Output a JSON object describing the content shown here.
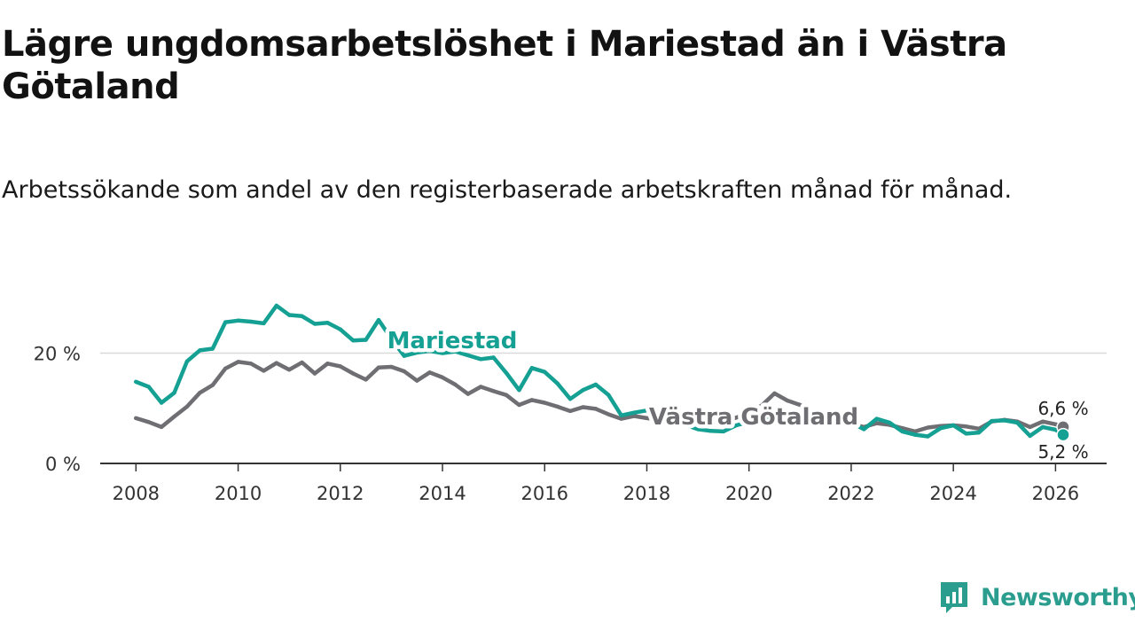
{
  "title": "Lägre ungdomsarbetslöshet i Mariestad än i Västra Götaland",
  "subtitle": "Arbetssökande som andel av den registerbaserade arbetskraften månad för månad.",
  "brand": {
    "name": "Newsworthy",
    "icon": "newsworthy-logo-icon",
    "color": "#2a9d8f"
  },
  "chart_data": {
    "type": "line",
    "title": "Lägre ungdomsarbetslöshet i Mariestad än i Västra Götaland",
    "xlabel": "",
    "ylabel": "",
    "xlim": [
      2007.3,
      2027.0
    ],
    "ylim": [
      0,
      31
    ],
    "x_ticks": [
      2008,
      2010,
      2012,
      2014,
      2016,
      2018,
      2020,
      2022,
      2024,
      2026
    ],
    "x_tick_labels": [
      "2008",
      "2010",
      "2012",
      "2014",
      "2016",
      "2018",
      "2020",
      "2022",
      "2024",
      "2026"
    ],
    "y_ticks": [
      0,
      20
    ],
    "y_tick_labels": [
      "0 %",
      "20 %"
    ],
    "grid": "horizontal",
    "series": [
      {
        "name": "Västra Götaland",
        "label": "Västra Götaland",
        "color": "#6e6e73",
        "end_label": "6,6 %",
        "x": [
          2008.0,
          2008.25,
          2008.5,
          2008.75,
          2009.0,
          2009.25,
          2009.5,
          2009.75,
          2010.0,
          2010.25,
          2010.5,
          2010.75,
          2011.0,
          2011.25,
          2011.5,
          2011.75,
          2012.0,
          2012.25,
          2012.5,
          2012.75,
          2013.0,
          2013.25,
          2013.5,
          2013.75,
          2014.0,
          2014.25,
          2014.5,
          2014.75,
          2015.0,
          2015.25,
          2015.5,
          2015.75,
          2016.0,
          2016.25,
          2016.5,
          2016.75,
          2017.0,
          2017.25,
          2017.5,
          2017.75,
          2018.0,
          2018.25,
          2018.5,
          2018.75,
          2019.0,
          2019.25,
          2019.5,
          2019.75,
          2020.0,
          2020.25,
          2020.5,
          2020.75,
          2021.0,
          2021.25,
          2021.5,
          2021.75,
          2022.0,
          2022.25,
          2022.5,
          2022.75,
          2023.0,
          2023.25,
          2023.5,
          2023.75,
          2024.0,
          2024.25,
          2024.5,
          2024.75,
          2025.0,
          2025.25,
          2025.5,
          2025.75,
          2026.0,
          2026.15
        ],
        "values": [
          8.2,
          7.5,
          6.6,
          8.5,
          10.3,
          12.8,
          14.2,
          17.2,
          18.4,
          18.1,
          16.8,
          18.2,
          17.0,
          18.3,
          16.3,
          18.1,
          17.6,
          16.3,
          15.2,
          17.4,
          17.5,
          16.7,
          15.0,
          16.5,
          15.6,
          14.3,
          12.6,
          13.9,
          13.1,
          12.4,
          10.6,
          11.5,
          11.0,
          10.3,
          9.5,
          10.2,
          9.9,
          8.9,
          8.1,
          8.6,
          8.2,
          7.9,
          7.2,
          7.0,
          7.5,
          7.6,
          7.6,
          8.3,
          9.2,
          10.5,
          12.7,
          11.4,
          10.6,
          9.4,
          8.4,
          7.6,
          7.2,
          6.6,
          7.3,
          7.0,
          6.4,
          5.8,
          6.5,
          6.8,
          6.9,
          6.7,
          6.3,
          7.6,
          7.9,
          7.6,
          6.6,
          7.6,
          7.1,
          6.6
        ]
      },
      {
        "name": "Mariestad",
        "label": "Mariestad",
        "color": "#15a094",
        "end_label": "5,2 %",
        "x": [
          2008.0,
          2008.25,
          2008.5,
          2008.75,
          2009.0,
          2009.25,
          2009.5,
          2009.75,
          2010.0,
          2010.25,
          2010.5,
          2010.75,
          2011.0,
          2011.25,
          2011.5,
          2011.75,
          2012.0,
          2012.25,
          2012.5,
          2012.75,
          2013.0,
          2013.25,
          2013.5,
          2013.75,
          2014.0,
          2014.25,
          2014.5,
          2014.75,
          2015.0,
          2015.25,
          2015.5,
          2015.75,
          2016.0,
          2016.25,
          2016.5,
          2016.75,
          2017.0,
          2017.25,
          2017.5,
          2017.75,
          2018.0,
          2018.25,
          2018.5,
          2018.75,
          2019.0,
          2019.25,
          2019.5,
          2019.75,
          2020.0,
          2020.25,
          2020.5,
          2020.75,
          2021.0,
          2021.25,
          2021.5,
          2021.75,
          2022.0,
          2022.25,
          2022.5,
          2022.75,
          2023.0,
          2023.25,
          2023.5,
          2023.75,
          2024.0,
          2024.25,
          2024.5,
          2024.75,
          2025.0,
          2025.25,
          2025.5,
          2025.75,
          2026.0,
          2026.15
        ],
        "values": [
          14.8,
          13.9,
          11.0,
          12.8,
          18.5,
          20.5,
          20.8,
          25.6,
          25.9,
          25.7,
          25.4,
          28.6,
          26.9,
          26.7,
          25.3,
          25.5,
          24.3,
          22.3,
          22.4,
          26.0,
          22.6,
          19.5,
          20.1,
          20.4,
          20.0,
          20.3,
          19.6,
          18.9,
          19.2,
          16.4,
          13.3,
          17.3,
          16.6,
          14.5,
          11.7,
          13.3,
          14.3,
          12.4,
          8.7,
          9.2,
          9.6,
          8.1,
          7.4,
          7.0,
          6.2,
          5.9,
          5.8,
          6.9,
          7.5,
          8.2,
          8.5,
          8.1,
          7.8,
          7.3,
          7.2,
          7.0,
          7.4,
          6.2,
          8.1,
          7.4,
          5.8,
          5.2,
          4.9,
          6.4,
          6.9,
          5.4,
          5.6,
          7.7,
          7.8,
          7.4,
          5.0,
          6.6,
          6.1,
          5.2
        ]
      }
    ]
  }
}
